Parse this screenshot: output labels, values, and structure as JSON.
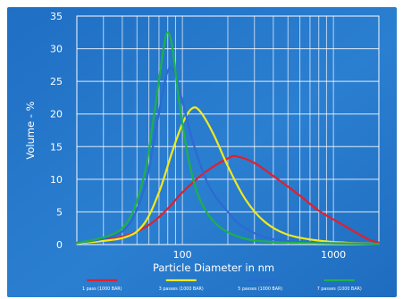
{
  "chart_data": {
    "type": "line",
    "title": "",
    "xlabel": "Particle Diameter in nm",
    "ylabel": "Volume - %",
    "xscale": "log",
    "xlim": [
      20,
      2000
    ],
    "ylim": [
      0,
      35
    ],
    "x_ticks": [
      {
        "value": 100,
        "label": "100"
      },
      {
        "value": 1000,
        "label": "1000"
      }
    ],
    "y_ticks": [
      0,
      5,
      10,
      15,
      20,
      25,
      30,
      35
    ],
    "grid": true,
    "legend_position": "bottom",
    "series": [
      {
        "name": "1 pass (1000 BAR)",
        "color": "#e0202e",
        "points": [
          [
            20,
            0.3
          ],
          [
            40,
            1.2
          ],
          [
            60,
            3
          ],
          [
            80,
            5.5
          ],
          [
            100,
            8
          ],
          [
            140,
            11
          ],
          [
            200,
            13.2
          ],
          [
            230,
            13.5
          ],
          [
            300,
            12.5
          ],
          [
            400,
            10.5
          ],
          [
            600,
            7.5
          ],
          [
            800,
            5.2
          ],
          [
            1200,
            2.8
          ],
          [
            1700,
            0.8
          ],
          [
            2000,
            0.3
          ]
        ]
      },
      {
        "name": "3 passes (1000 BAR)",
        "color": "#f2ea1c",
        "points": [
          [
            20,
            0.2
          ],
          [
            40,
            1
          ],
          [
            55,
            3
          ],
          [
            70,
            8
          ],
          [
            85,
            14
          ],
          [
            100,
            18.5
          ],
          [
            115,
            20.8
          ],
          [
            130,
            20.5
          ],
          [
            160,
            17
          ],
          [
            200,
            12
          ],
          [
            260,
            7
          ],
          [
            350,
            3.5
          ],
          [
            500,
            1.5
          ],
          [
            800,
            0.6
          ],
          [
            1200,
            0.3
          ],
          [
            2000,
            0.1
          ]
        ]
      },
      {
        "name": "5 passes (1000 BAR)",
        "color": "#2c6ad4",
        "points": [
          [
            20,
            0.2
          ],
          [
            40,
            2
          ],
          [
            55,
            8
          ],
          [
            65,
            16
          ],
          [
            75,
            24
          ],
          [
            82,
            27
          ],
          [
            90,
            26
          ],
          [
            100,
            22
          ],
          [
            120,
            15
          ],
          [
            150,
            9
          ],
          [
            200,
            5
          ],
          [
            260,
            2.5
          ],
          [
            400,
            0.8
          ],
          [
            800,
            0.3
          ],
          [
            2000,
            0.1
          ]
        ]
      },
      {
        "name": "7 passes (1000 BAR)",
        "color": "#1eb04a",
        "points": [
          [
            20,
            0.2
          ],
          [
            40,
            2.5
          ],
          [
            55,
            10
          ],
          [
            65,
            20
          ],
          [
            75,
            30
          ],
          [
            80,
            32.5
          ],
          [
            86,
            30
          ],
          [
            95,
            22
          ],
          [
            110,
            13
          ],
          [
            130,
            7
          ],
          [
            170,
            3
          ],
          [
            250,
            1
          ],
          [
            400,
            0.4
          ],
          [
            800,
            0.2
          ],
          [
            2000,
            0.1
          ]
        ]
      }
    ]
  }
}
